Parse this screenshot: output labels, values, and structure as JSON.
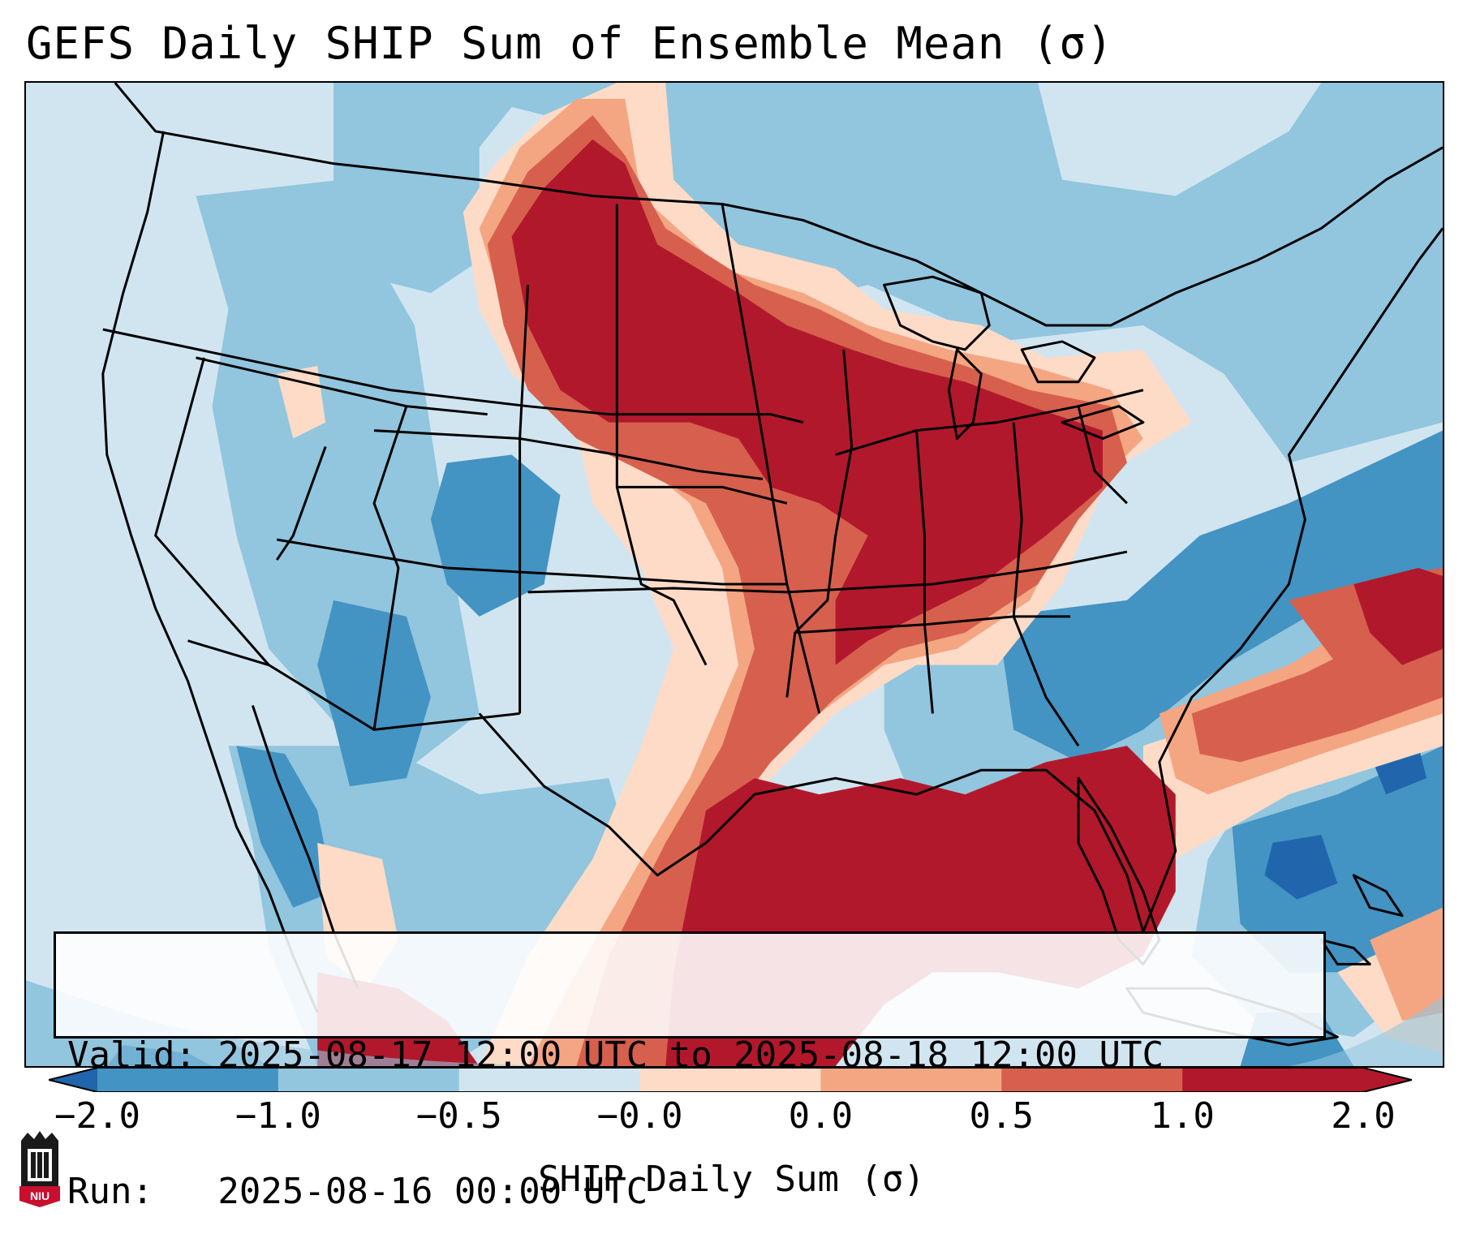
{
  "title": "GEFS Daily SHIP Sum of Ensemble Mean (σ)",
  "info": {
    "valid_line": "Valid: 2025-08-17 12:00 UTC to 2025-08-18 12:00 UTC",
    "run_line": "Run:   2025-08-16 00:00 UTC"
  },
  "colorbar": {
    "label": "SHIP Daily Sum (σ)",
    "ticks": [
      "−2.0",
      "−1.0",
      "−0.5",
      "−0.0",
      "0.0",
      "0.5",
      "1.0",
      "2.0"
    ],
    "colors": [
      "#2166ac",
      "#4393c3",
      "#92c5de",
      "#d1e5f0",
      "#fddbc7",
      "#f4a582",
      "#d6604d",
      "#b2182b"
    ]
  },
  "logo": {
    "text": "NIU"
  },
  "colors": {
    "very_low": "#2166ac",
    "low": "#4393c3",
    "below": "#92c5de",
    "near_neg": "#d1e5f0",
    "near_pos": "#fddbc7",
    "above": "#f4a582",
    "high": "#d6604d",
    "very_high": "#b2182b"
  }
}
